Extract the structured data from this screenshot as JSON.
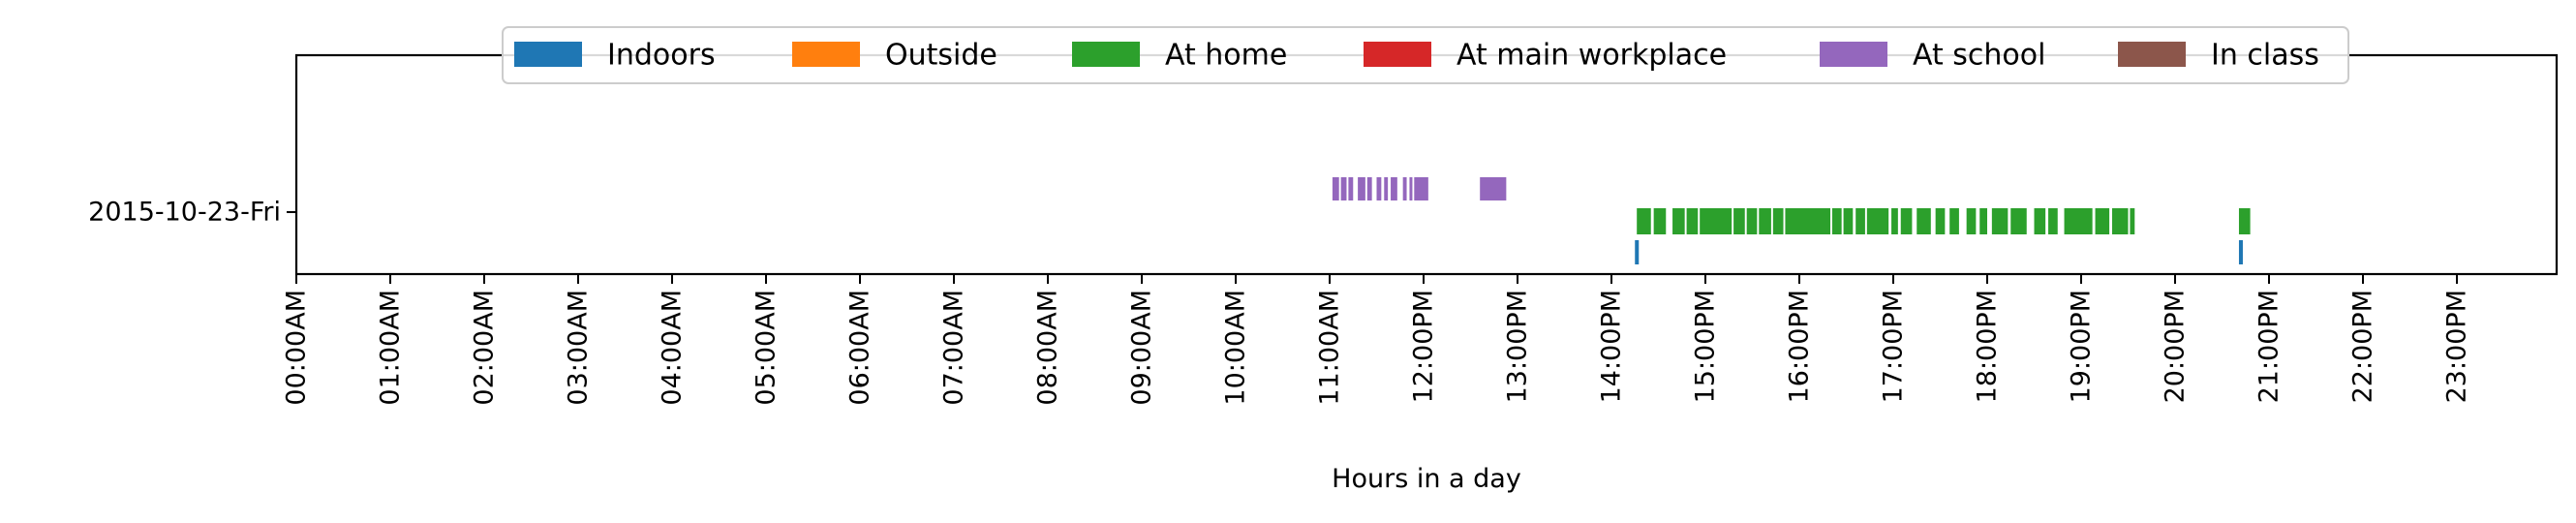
{
  "chart_data": {
    "type": "timeline",
    "xlabel": "Hours in a day",
    "xlim": [
      0,
      24
    ],
    "x_ticks": [
      "00:00AM",
      "01:00AM",
      "02:00AM",
      "03:00AM",
      "04:00AM",
      "05:00AM",
      "06:00AM",
      "07:00AM",
      "08:00AM",
      "09:00AM",
      "10:00AM",
      "11:00AM",
      "12:00PM",
      "13:00PM",
      "14:00PM",
      "15:00PM",
      "16:00PM",
      "17:00PM",
      "18:00PM",
      "19:00PM",
      "20:00PM",
      "21:00PM",
      "22:00PM",
      "23:00PM"
    ],
    "categories": [
      "2015-10-23-Fri"
    ],
    "legend_position": "top-center",
    "series": [
      {
        "name": "Indoors",
        "color": "#1f77b4",
        "lane": "lower",
        "intervals": [
          [
            14.25,
            14.29
          ],
          [
            20.68,
            20.72
          ]
        ]
      },
      {
        "name": "Outside",
        "color": "#ff7f0e",
        "lane": "upper",
        "intervals": []
      },
      {
        "name": "At home",
        "color": "#2ca02c",
        "lane": "middle",
        "intervals": [
          [
            14.27,
            14.42
          ],
          [
            14.45,
            14.58
          ],
          [
            14.65,
            14.78
          ],
          [
            14.8,
            14.92
          ],
          [
            14.94,
            15.28
          ],
          [
            15.3,
            15.42
          ],
          [
            15.44,
            15.55
          ],
          [
            15.57,
            15.7
          ],
          [
            15.72,
            15.83
          ],
          [
            15.85,
            16.33
          ],
          [
            16.35,
            16.45
          ],
          [
            16.47,
            16.57
          ],
          [
            16.6,
            16.7
          ],
          [
            16.72,
            16.95
          ],
          [
            16.98,
            17.05
          ],
          [
            17.08,
            17.2
          ],
          [
            17.25,
            17.4
          ],
          [
            17.45,
            17.55
          ],
          [
            17.6,
            17.7
          ],
          [
            17.78,
            17.88
          ],
          [
            17.92,
            18.0
          ],
          [
            18.05,
            18.22
          ],
          [
            18.25,
            18.42
          ],
          [
            18.5,
            18.62
          ],
          [
            18.65,
            18.75
          ],
          [
            18.82,
            19.12
          ],
          [
            19.15,
            19.3
          ],
          [
            19.33,
            19.5
          ],
          [
            19.52,
            19.57
          ],
          [
            20.68,
            20.8
          ]
        ]
      },
      {
        "name": "At main workplace",
        "color": "#d62728",
        "lane": "upper",
        "intervals": []
      },
      {
        "name": "At school",
        "color": "#9467bd",
        "lane": "upper",
        "intervals": [
          [
            11.03,
            11.1
          ],
          [
            11.12,
            11.18
          ],
          [
            11.2,
            11.25
          ],
          [
            11.3,
            11.38
          ],
          [
            11.4,
            11.45
          ],
          [
            11.5,
            11.55
          ],
          [
            11.58,
            11.62
          ],
          [
            11.65,
            11.72
          ],
          [
            11.78,
            11.82
          ],
          [
            11.85,
            11.88
          ],
          [
            11.9,
            12.05
          ],
          [
            12.6,
            12.88
          ]
        ]
      },
      {
        "name": "In class",
        "color": "#8c564b",
        "lane": "upper",
        "intervals": []
      }
    ]
  }
}
